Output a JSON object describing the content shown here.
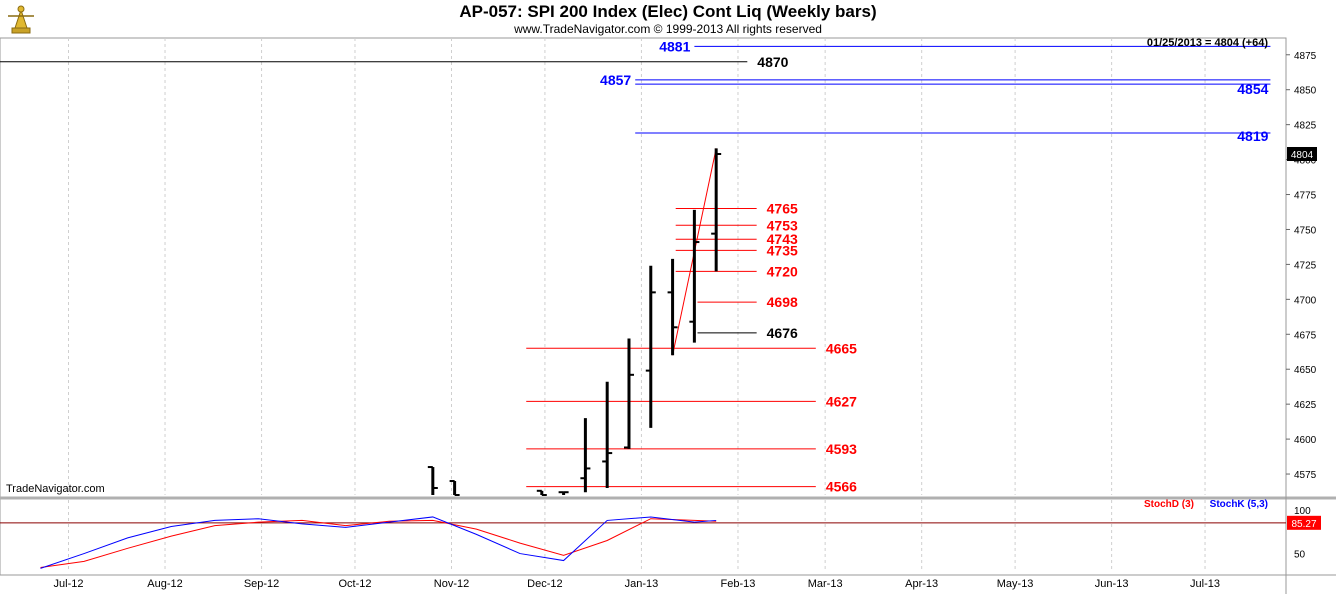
{
  "header": {
    "title": "AP-057:  SPI 200 Index (Elec) Cont Liq  (Weekly bars)",
    "copyright": "www.TradeNavigator.com © 1999-2013 All rights reserved",
    "date_readout": "01/25/2013 = 4804 (+64)",
    "watermark": "TradeNavigator.com"
  },
  "colors": {
    "price_bar": "#000000",
    "level_red": "#ff0000",
    "level_blue": "#0000ff",
    "level_black": "#000000",
    "stoch_d": "#ff0000",
    "stoch_k": "#0000ff",
    "grid": "#cfcfcf"
  },
  "chart_data": {
    "type": "ohlc",
    "x_tick_labels": [
      "Jul-12",
      "Aug-12",
      "Sep-12",
      "Oct-12",
      "Nov-12",
      "Dec-12",
      "Jan-13",
      "Feb-13",
      "Mar-13",
      "Apr-13",
      "May-13",
      "Jun-13",
      "Jul-13"
    ],
    "x_tick_dates": [
      "2012-07-01",
      "2012-08-01",
      "2012-09-01",
      "2012-10-01",
      "2012-11-01",
      "2012-12-01",
      "2013-01-01",
      "2013-02-01",
      "2013-03-01",
      "2013-04-01",
      "2013-05-01",
      "2013-06-01",
      "2013-07-01"
    ],
    "x_range": [
      "2012-06-09",
      "2013-07-27"
    ],
    "y_tick_labels": [
      "4575",
      "4600",
      "4625",
      "4650",
      "4675",
      "4700",
      "4725",
      "4750",
      "4775",
      "4800",
      "4825",
      "4850",
      "4875"
    ],
    "ylim": [
      4560,
      4887
    ],
    "y_axis_side": "right",
    "grid": true,
    "bars": [
      {
        "date": "2012-10-26",
        "open": 4580,
        "high": 4580,
        "low": 4560,
        "close": 4565
      },
      {
        "date": "2012-11-02",
        "open": 4570,
        "high": 4570,
        "low": 4560,
        "close": 4560
      },
      {
        "date": "2012-11-30",
        "open": 4563,
        "high": 4563,
        "low": 4560,
        "close": 4560
      },
      {
        "date": "2012-12-07",
        "open": 4562,
        "high": 4562,
        "low": 4560,
        "close": 4562
      },
      {
        "date": "2012-12-14",
        "open": 4572,
        "high": 4615,
        "low": 4562,
        "close": 4579
      },
      {
        "date": "2012-12-21",
        "open": 4584,
        "high": 4641,
        "low": 4565,
        "close": 4590
      },
      {
        "date": "2012-12-28",
        "open": 4594,
        "high": 4672,
        "low": 4593,
        "close": 4646
      },
      {
        "date": "2013-01-04",
        "open": 4649,
        "high": 4724,
        "low": 4608,
        "close": 4705
      },
      {
        "date": "2013-01-11",
        "open": 4705,
        "high": 4729,
        "low": 4660,
        "close": 4680
      },
      {
        "date": "2013-01-18",
        "open": 4684,
        "high": 4764,
        "low": 4669,
        "close": 4741
      },
      {
        "date": "2013-01-25",
        "open": 4747,
        "high": 4808,
        "low": 4720,
        "close": 4804
      }
    ],
    "last_price_label": "4804",
    "levels": [
      {
        "value": 4881,
        "label": "4881",
        "color": "blue",
        "start": "2013-01-18",
        "end": "2013-07-22",
        "label_side": "left"
      },
      {
        "value": 4870,
        "label": "4870",
        "color": "black",
        "start": "2012-06-09",
        "end": "2013-02-04",
        "label_side": "right"
      },
      {
        "value": 4857,
        "label": "4857",
        "color": "blue",
        "start": "2012-12-30",
        "end": "2013-07-22",
        "label_side": "left"
      },
      {
        "value": 4854,
        "label": "4854",
        "color": "blue",
        "start": "2012-12-30",
        "end": "2013-07-22",
        "label_side": "right"
      },
      {
        "value": 4819,
        "label": "4819",
        "color": "blue",
        "start": "2012-12-30",
        "end": "2013-07-22",
        "label_side": "right"
      },
      {
        "value": 4765,
        "label": "4765",
        "color": "red",
        "start": "2013-01-12",
        "end": "2013-02-07",
        "label_side": "right"
      },
      {
        "value": 4753,
        "label": "4753",
        "color": "red",
        "start": "2013-01-12",
        "end": "2013-02-07",
        "label_side": "right"
      },
      {
        "value": 4743,
        "label": "4743",
        "color": "red",
        "start": "2013-01-12",
        "end": "2013-02-07",
        "label_side": "right"
      },
      {
        "value": 4735,
        "label": "4735",
        "color": "red",
        "start": "2013-01-12",
        "end": "2013-02-07",
        "label_side": "right"
      },
      {
        "value": 4720,
        "label": "4720",
        "color": "red",
        "start": "2013-01-12",
        "end": "2013-02-07",
        "label_side": "right"
      },
      {
        "value": 4698,
        "label": "4698",
        "color": "red",
        "start": "2013-01-19",
        "end": "2013-02-07",
        "label_side": "right"
      },
      {
        "value": 4676,
        "label": "4676",
        "color": "black",
        "start": "2013-01-19",
        "end": "2013-02-07",
        "label_side": "right"
      },
      {
        "value": 4665,
        "label": "4665",
        "color": "red",
        "start": "2012-11-25",
        "end": "2013-02-26",
        "label_side": "right"
      },
      {
        "value": 4627,
        "label": "4627",
        "color": "red",
        "start": "2012-11-25",
        "end": "2013-02-26",
        "label_side": "right"
      },
      {
        "value": 4593,
        "label": "4593",
        "color": "red",
        "start": "2012-11-25",
        "end": "2013-02-26",
        "label_side": "right"
      },
      {
        "value": 4566,
        "label": "4566",
        "color": "red",
        "start": "2012-11-25",
        "end": "2013-02-26",
        "label_side": "right"
      }
    ],
    "trend_line": {
      "color": "red",
      "points": [
        {
          "date": "2013-01-11",
          "value": 4660
        },
        {
          "date": "2013-01-25",
          "value": 4808
        }
      ]
    },
    "indicator": {
      "type": "line",
      "ylim": [
        30,
        108
      ],
      "y_tick_labels": [
        "50",
        "100"
      ],
      "last_value_label": "85.27",
      "reference_value": 85.27,
      "series": [
        {
          "name": "StochD (3)",
          "color": "red",
          "points": [
            [
              "2012-06-22",
              34
            ],
            [
              "2012-07-06",
              41
            ],
            [
              "2012-07-20",
              56
            ],
            [
              "2012-08-03",
              70
            ],
            [
              "2012-08-17",
              82
            ],
            [
              "2012-08-31",
              86
            ],
            [
              "2012-09-14",
              88
            ],
            [
              "2012-09-28",
              82
            ],
            [
              "2012-10-12",
              87
            ],
            [
              "2012-10-26",
              88
            ],
            [
              "2012-11-09",
              78
            ],
            [
              "2012-11-23",
              62
            ],
            [
              "2012-12-07",
              48
            ],
            [
              "2012-12-21",
              65
            ],
            [
              "2013-01-04",
              90
            ],
            [
              "2013-01-18",
              88
            ],
            [
              "2013-01-25",
              87
            ]
          ]
        },
        {
          "name": "StochK (5,3)",
          "color": "blue",
          "points": [
            [
              "2012-06-22",
              33
            ],
            [
              "2012-07-06",
              50
            ],
            [
              "2012-07-20",
              68
            ],
            [
              "2012-08-03",
              81
            ],
            [
              "2012-08-17",
              88
            ],
            [
              "2012-08-31",
              90
            ],
            [
              "2012-09-14",
              84
            ],
            [
              "2012-09-28",
              80
            ],
            [
              "2012-10-12",
              86
            ],
            [
              "2012-10-26",
              92
            ],
            [
              "2012-11-09",
              72
            ],
            [
              "2012-11-23",
              50
            ],
            [
              "2012-12-07",
              42
            ],
            [
              "2012-12-21",
              88
            ],
            [
              "2013-01-04",
              92
            ],
            [
              "2013-01-18",
              86
            ],
            [
              "2013-01-25",
              88
            ]
          ]
        }
      ]
    }
  }
}
